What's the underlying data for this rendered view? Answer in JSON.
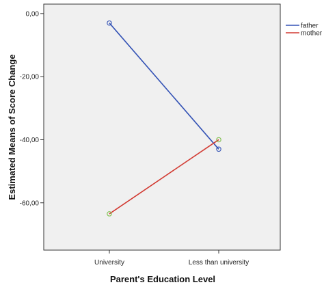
{
  "chart_data": {
    "type": "line",
    "categories": [
      "University",
      "Less than university"
    ],
    "series": [
      {
        "name": "father",
        "values": [
          -3,
          -43
        ],
        "color": "#3352b5"
      },
      {
        "name": "mother",
        "values": [
          -63.5,
          -40
        ],
        "color": "#d23a32"
      }
    ],
    "xlabel": "Parent's Education Level",
    "ylabel": "Estimated  Means of Score Change",
    "ylim": [
      -75,
      3
    ],
    "yticks": [
      0,
      -20,
      -40,
      -60
    ],
    "ytick_labels": [
      "0,00",
      "-20,00",
      "-40,00",
      "-60,00"
    ],
    "marker": "circle",
    "marker_colors": [
      "#3352b5",
      "#7fbf4d"
    ],
    "plot_background": "#f0f0f0",
    "grid": false,
    "legend_position": "right"
  }
}
